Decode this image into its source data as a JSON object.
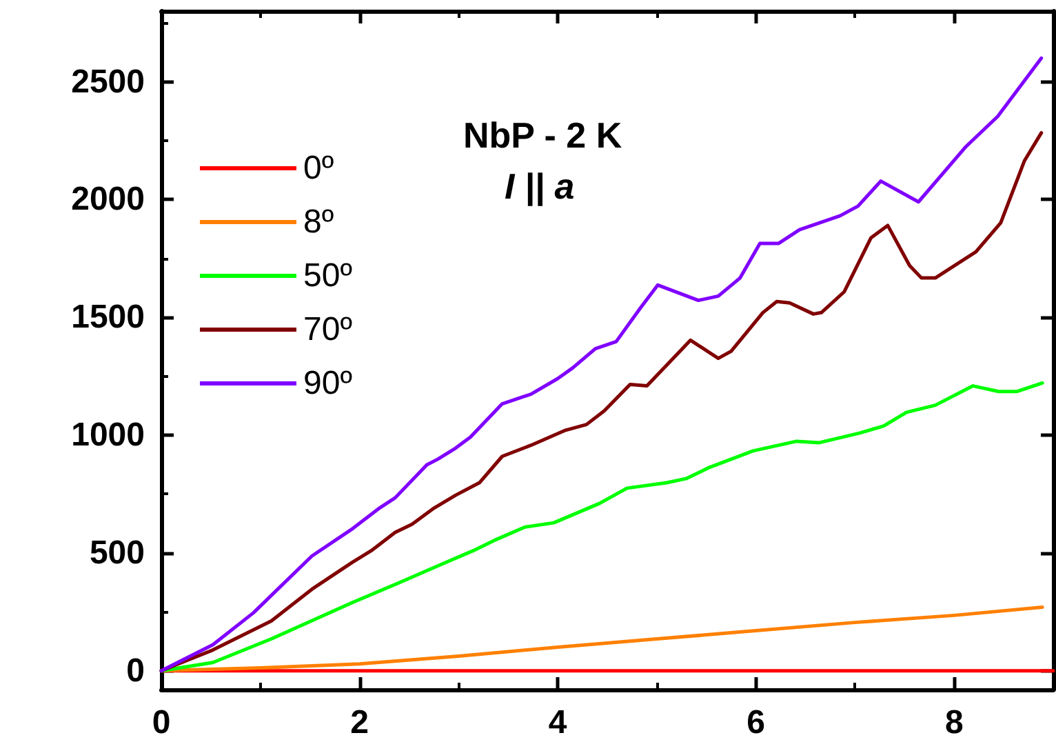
{
  "chart_data": {
    "type": "line",
    "title": "NbP - 2 K",
    "subtitle": "I || a",
    "xlim": [
      0,
      9
    ],
    "xticks": [
      0,
      2,
      4,
      6,
      8
    ],
    "ylim": [
      -80,
      2800
    ],
    "yticks": [
      0,
      500,
      1000,
      1500,
      2000,
      2500
    ],
    "grid": false,
    "legend": "top left",
    "marker": "none",
    "line_style": "solid",
    "series": [
      {
        "name": "0º",
        "color": "#ff0000",
        "x": [
          0,
          2,
          4,
          6,
          8,
          9
        ],
        "values": [
          0,
          0,
          0,
          0,
          0,
          0
        ]
      },
      {
        "name": "8º",
        "color": "#ff8000",
        "x": [
          0,
          1,
          2,
          3,
          4,
          5,
          6,
          7,
          8,
          8.89
        ],
        "values": [
          0,
          12,
          29,
          62,
          100,
          135,
          170,
          205,
          235,
          270
        ]
      },
      {
        "name": "50º",
        "color": "#00ff00",
        "x": [
          0,
          0.52,
          1.11,
          1.92,
          2.38,
          2.86,
          3.15,
          3.38,
          3.67,
          3.96,
          4.42,
          4.7,
          5.1,
          5.3,
          5.53,
          5.97,
          6.41,
          6.64,
          7.05,
          7.29,
          7.52,
          7.81,
          8.19,
          8.45,
          8.63,
          8.89
        ],
        "values": [
          0,
          35,
          135,
          288,
          370,
          458,
          510,
          557,
          610,
          628,
          710,
          775,
          798,
          816,
          863,
          933,
          974,
          968,
          1009,
          1039,
          1097,
          1127,
          1209,
          1185,
          1185,
          1221
        ]
      },
      {
        "name": "70º",
        "color": "#800000",
        "x": [
          0,
          0.52,
          1.11,
          1.52,
          1.92,
          2.12,
          2.36,
          2.53,
          2.74,
          2.97,
          3.21,
          3.44,
          3.73,
          4.08,
          4.29,
          4.47,
          4.73,
          4.9,
          5.34,
          5.62,
          5.75,
          6.07,
          6.21,
          6.34,
          6.58,
          6.66,
          6.89,
          7.16,
          7.33,
          7.55,
          7.67,
          7.81,
          8.22,
          8.47,
          8.71,
          8.88
        ],
        "values": [
          0,
          88,
          211,
          346,
          458,
          510,
          587,
          622,
          687,
          745,
          798,
          910,
          957,
          1021,
          1045,
          1103,
          1215,
          1209,
          1403,
          1326,
          1356,
          1520,
          1567,
          1561,
          1514,
          1520,
          1608,
          1837,
          1890,
          1720,
          1667,
          1667,
          1778,
          1901,
          2165,
          2283
        ]
      },
      {
        "name": "90º",
        "color": "#8000ff",
        "x": [
          0,
          0.52,
          0.93,
          1.52,
          1.92,
          2.19,
          2.36,
          2.68,
          2.79,
          2.97,
          3.12,
          3.44,
          3.73,
          4.0,
          4.15,
          4.38,
          4.59,
          4.84,
          5.01,
          5.42,
          5.62,
          5.84,
          6.04,
          6.23,
          6.44,
          6.85,
          7.03,
          7.26,
          7.64,
          8.12,
          8.44,
          8.88
        ],
        "values": [
          0,
          110,
          246,
          487,
          600,
          687,
          734,
          874,
          898,
          945,
          992,
          1133,
          1174,
          1240,
          1285,
          1367,
          1397,
          1543,
          1637,
          1572,
          1590,
          1667,
          1814,
          1814,
          1872,
          1931,
          1972,
          2078,
          1990,
          2225,
          2353,
          2600
        ]
      }
    ]
  }
}
